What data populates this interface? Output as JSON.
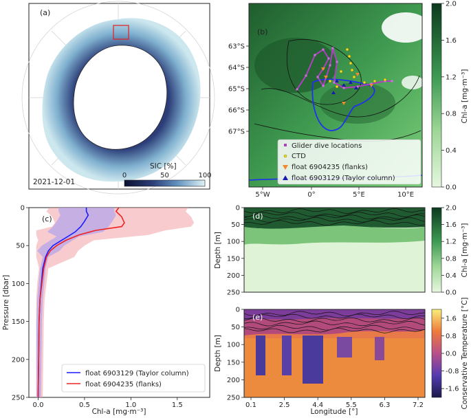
{
  "chart_data": [
    {
      "panel": "(a)",
      "type": "map",
      "date_label": "2021-12-01",
      "colorbar": {
        "label": "SIC [%]",
        "ticks": [
          "0",
          "50",
          "100"
        ],
        "range": [
          0,
          100
        ]
      }
    },
    {
      "panel": "(b)",
      "type": "map",
      "lat_ticks": [
        "63°S",
        "64°S",
        "65°S",
        "66°S",
        "67°S"
      ],
      "lon_ticks": [
        "5°W",
        "0°",
        "5°E",
        "10°E"
      ],
      "legend": [
        "Glider dive locations",
        "CTD",
        "float 6904235 (flanks)",
        "float 6903129 (Taylor column)"
      ],
      "colorbar": {
        "label": "Chl-a [mg·m⁻³]",
        "ticks": [
          "0.0",
          "0.4",
          "0.8",
          "1.2",
          "1.6",
          "2.0"
        ],
        "range": [
          0,
          2
        ]
      }
    },
    {
      "panel": "(c)",
      "type": "line",
      "xlabel": "Chl-a [mg·m⁻³]",
      "ylabel": "Pressure [dbar]",
      "xlim": [
        -0.1,
        1.85
      ],
      "ylim": [
        250,
        0
      ],
      "xticks": [
        "0.0",
        "0.5",
        "1.0",
        "1.5"
      ],
      "yticks": [
        "0",
        "50",
        "100",
        "150",
        "200",
        "250"
      ],
      "series": [
        {
          "name": "float 6903129 (Taylor column)",
          "color": "#1a1aff",
          "points": [
            [
              0.52,
              0
            ],
            [
              0.52,
              5
            ],
            [
              0.54,
              10
            ],
            [
              0.5,
              18
            ],
            [
              0.46,
              25
            ],
            [
              0.4,
              32
            ],
            [
              0.32,
              38
            ],
            [
              0.24,
              44
            ],
            [
              0.16,
              50
            ],
            [
              0.11,
              57
            ],
            [
              0.08,
              65
            ],
            [
              0.05,
              80
            ],
            [
              0.035,
              100
            ],
            [
              0.02,
              120
            ],
            [
              0.01,
              150
            ],
            [
              0.005,
              200
            ],
            [
              0.0,
              250
            ]
          ]
        },
        {
          "name": "float 6904235 (flanks)",
          "color": "#ee2222",
          "points": [
            [
              0.87,
              0
            ],
            [
              0.84,
              5
            ],
            [
              0.9,
              12
            ],
            [
              0.93,
              20
            ],
            [
              0.9,
              25
            ],
            [
              0.62,
              30
            ],
            [
              0.44,
              36
            ],
            [
              0.3,
              43
            ],
            [
              0.2,
              50
            ],
            [
              0.13,
              57
            ],
            [
              0.09,
              65
            ],
            [
              0.06,
              80
            ],
            [
              0.04,
              100
            ],
            [
              0.02,
              120
            ],
            [
              0.01,
              150
            ],
            [
              0.005,
              200
            ],
            [
              0.0,
              250
            ]
          ]
        }
      ]
    },
    {
      "panel": "(d)",
      "type": "heatmap",
      "ylabel": "Depth [m]",
      "yticks": [
        "0",
        "50",
        "100",
        "150",
        "200",
        "250"
      ],
      "colorbar": {
        "label": "Chl-a [mg·m⁻³]",
        "ticks": [
          "0.0",
          "0.4",
          "0.8",
          "1.2",
          "1.6",
          "2.0"
        ],
        "range": [
          0,
          2
        ]
      }
    },
    {
      "panel": "(e)",
      "type": "heatmap",
      "xlabel": "Longitude [°]",
      "ylabel": "Depth [m]",
      "xticks": [
        "0.1",
        "2.5",
        "4.4",
        "5.5",
        "6.3",
        "7.2"
      ],
      "yticks": [
        "0",
        "50",
        "100",
        "150",
        "200",
        "250"
      ],
      "colorbar": {
        "label": "Conservative Temperature [°C]",
        "ticks": [
          "-1.6",
          "-0.8",
          "0.0",
          "0.8",
          "1.6"
        ],
        "range": [
          -2.0,
          2.0
        ]
      }
    }
  ]
}
